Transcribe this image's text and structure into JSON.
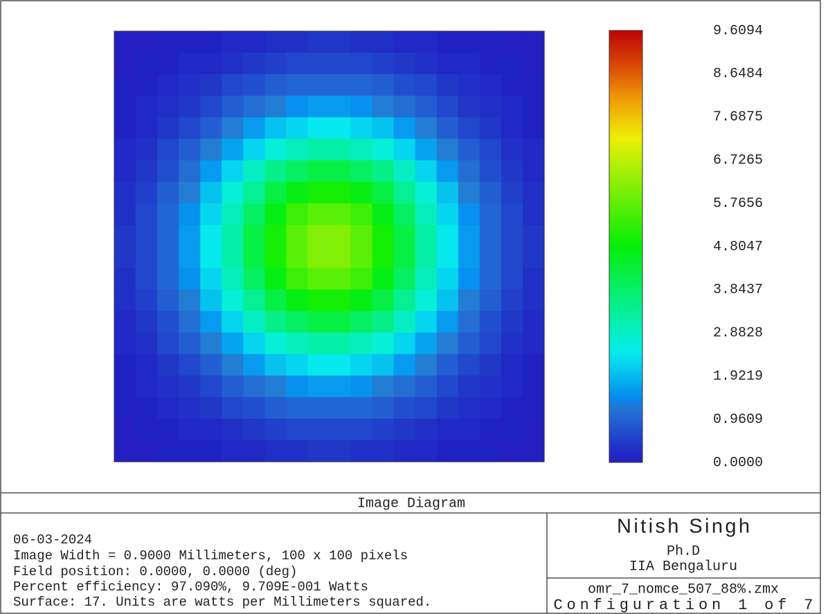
{
  "chart_data": {
    "type": "heatmap",
    "colormap": "rainbow",
    "values": [
      [
        0,
        0,
        0.1,
        0.1,
        0.1,
        0.2,
        0.2,
        0.3,
        0.3,
        0.4,
        0.4,
        0.3,
        0.3,
        0.2,
        0.2,
        0.1,
        0.1,
        0.1,
        0,
        0
      ],
      [
        0,
        0.1,
        0.1,
        0.2,
        0.2,
        0.3,
        0.4,
        0.5,
        0.6,
        0.6,
        0.6,
        0.6,
        0.5,
        0.4,
        0.3,
        0.2,
        0.2,
        0.1,
        0.1,
        0
      ],
      [
        0.1,
        0.1,
        0.2,
        0.3,
        0.4,
        0.6,
        0.7,
        0.9,
        1.0,
        1.0,
        1.0,
        1.0,
        0.9,
        0.7,
        0.6,
        0.4,
        0.3,
        0.2,
        0.1,
        0.1
      ],
      [
        0.1,
        0.2,
        0.3,
        0.4,
        0.6,
        0.9,
        1.1,
        1.3,
        1.5,
        1.6,
        1.6,
        1.5,
        1.3,
        1.1,
        0.9,
        0.6,
        0.4,
        0.3,
        0.2,
        0.1
      ],
      [
        0.1,
        0.2,
        0.4,
        0.6,
        0.9,
        1.3,
        1.6,
        2.0,
        2.2,
        2.4,
        2.4,
        2.2,
        2.0,
        1.6,
        1.3,
        0.9,
        0.6,
        0.4,
        0.2,
        0.1
      ],
      [
        0.2,
        0.3,
        0.6,
        0.9,
        1.3,
        1.7,
        2.2,
        2.7,
        3.0,
        3.2,
        3.2,
        3.0,
        2.7,
        2.2,
        1.7,
        1.3,
        0.9,
        0.6,
        0.3,
        0.2
      ],
      [
        0.2,
        0.4,
        0.7,
        1.1,
        1.6,
        2.2,
        2.9,
        3.5,
        3.9,
        4.2,
        4.2,
        3.9,
        3.5,
        2.9,
        2.2,
        1.6,
        1.1,
        0.7,
        0.4,
        0.2
      ],
      [
        0.3,
        0.5,
        0.9,
        1.3,
        2.0,
        2.7,
        3.4,
        4.2,
        4.7,
        5.0,
        5.0,
        4.7,
        4.2,
        3.4,
        2.7,
        2.0,
        1.3,
        0.9,
        0.5,
        0.3
      ],
      [
        0.3,
        0.6,
        1.0,
        1.5,
        2.2,
        3.0,
        3.9,
        4.7,
        5.4,
        5.7,
        5.7,
        5.4,
        4.7,
        3.9,
        3.0,
        2.2,
        1.5,
        1.0,
        0.6,
        0.3
      ],
      [
        0.4,
        0.6,
        1.0,
        1.6,
        2.4,
        3.2,
        4.2,
        5.0,
        5.7,
        6.1,
        6.1,
        5.7,
        5.0,
        4.2,
        3.2,
        2.4,
        1.6,
        1.0,
        0.6,
        0.4
      ],
      [
        0.4,
        0.6,
        1.0,
        1.6,
        2.4,
        3.2,
        4.2,
        5.0,
        5.7,
        6.1,
        6.1,
        5.7,
        5.0,
        4.2,
        3.2,
        2.4,
        1.6,
        1.0,
        0.6,
        0.4
      ],
      [
        0.3,
        0.6,
        1.0,
        1.5,
        2.2,
        3.0,
        3.9,
        4.7,
        5.4,
        5.7,
        5.7,
        5.4,
        4.7,
        3.9,
        3.0,
        2.2,
        1.5,
        1.0,
        0.6,
        0.3
      ],
      [
        0.3,
        0.5,
        0.9,
        1.3,
        2.0,
        2.7,
        3.4,
        4.2,
        4.7,
        5.0,
        5.0,
        4.7,
        4.2,
        3.4,
        2.7,
        2.0,
        1.3,
        0.9,
        0.5,
        0.3
      ],
      [
        0.2,
        0.4,
        0.7,
        1.1,
        1.6,
        2.2,
        2.9,
        3.5,
        3.9,
        4.2,
        4.2,
        3.9,
        3.5,
        2.9,
        2.2,
        1.6,
        1.1,
        0.7,
        0.4,
        0.2
      ],
      [
        0.2,
        0.3,
        0.6,
        0.9,
        1.3,
        1.7,
        2.2,
        2.7,
        3.0,
        3.2,
        3.2,
        3.0,
        2.7,
        2.2,
        1.7,
        1.3,
        0.9,
        0.6,
        0.3,
        0.2
      ],
      [
        0.1,
        0.2,
        0.4,
        0.6,
        0.9,
        1.3,
        1.6,
        2.0,
        2.2,
        2.4,
        2.4,
        2.2,
        2.0,
        1.6,
        1.3,
        0.9,
        0.6,
        0.4,
        0.2,
        0.1
      ],
      [
        0.1,
        0.2,
        0.3,
        0.4,
        0.6,
        0.9,
        1.1,
        1.3,
        1.5,
        1.6,
        1.6,
        1.5,
        1.3,
        1.1,
        0.9,
        0.6,
        0.4,
        0.3,
        0.2,
        0.1
      ],
      [
        0.1,
        0.1,
        0.2,
        0.3,
        0.4,
        0.6,
        0.7,
        0.9,
        1.0,
        1.0,
        1.0,
        1.0,
        0.9,
        0.7,
        0.6,
        0.4,
        0.3,
        0.2,
        0.1,
        0.1
      ],
      [
        0,
        0.1,
        0.1,
        0.2,
        0.2,
        0.3,
        0.4,
        0.5,
        0.6,
        0.6,
        0.6,
        0.6,
        0.5,
        0.4,
        0.3,
        0.2,
        0.2,
        0.1,
        0.1,
        0
      ],
      [
        0,
        0,
        0.1,
        0.1,
        0.1,
        0.2,
        0.2,
        0.3,
        0.3,
        0.4,
        0.4,
        0.3,
        0.3,
        0.2,
        0.2,
        0.1,
        0.1,
        0.1,
        0,
        0
      ]
    ],
    "zlim": [
      0,
      9.6094
    ],
    "zticks": [
      {
        "value": 0,
        "label": "0.0000"
      },
      0.9609,
      1.9219,
      2.8828,
      3.8437,
      4.8047,
      5.7656,
      6.7265,
      7.6875,
      8.6484,
      9.6094
    ]
  },
  "footer": {
    "title": "Image Diagram",
    "lines": [
      "06-03-2024",
      "Image Width = 0.9000 Millimeters, 100 x 100 pixels",
      "Field position: 0.0000, 0.0000 (deg)",
      "Percent efficiency: 97.090%, 9.709E-001 Watts",
      "Surface: 17. Units are watts per Millimeters squared."
    ],
    "author": "Nitish Singh",
    "degree": "Ph.D",
    "institute": "IIA Bengaluru",
    "file": "omr_7_nomce_507_88%.zmx",
    "config": "Configuration 1 of 7"
  }
}
